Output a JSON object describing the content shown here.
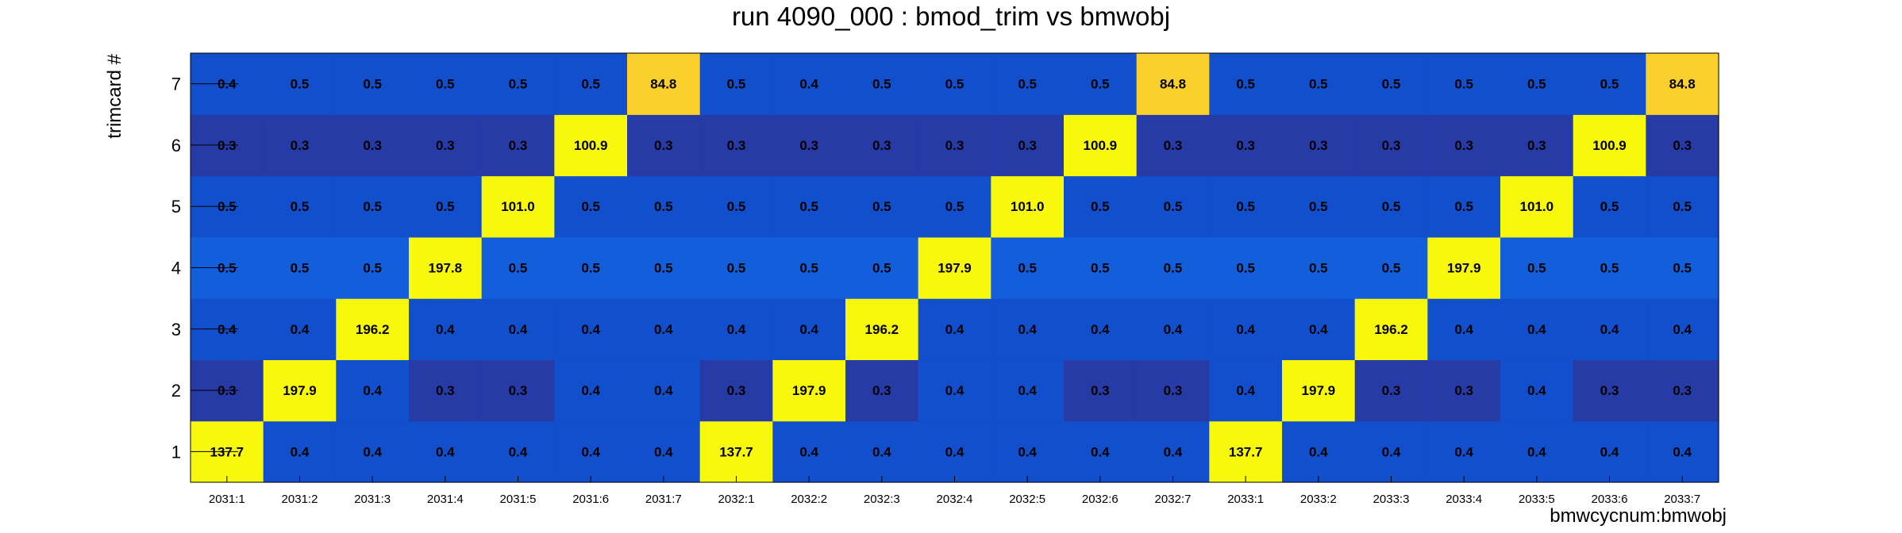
{
  "chart_data": {
    "type": "heatmap",
    "title": "run 4090_000 : bmod_trim vs bmwobj",
    "xlabel": "bmwcycnum:bmwobj",
    "ylabel": "trimcard #",
    "x_categories": [
      "2031:1",
      "2031:2",
      "2031:3",
      "2031:4",
      "2031:5",
      "2031:6",
      "2031:7",
      "2032:1",
      "2032:2",
      "2032:3",
      "2032:4",
      "2032:5",
      "2032:6",
      "2032:7",
      "2033:1",
      "2033:2",
      "2033:3",
      "2033:4",
      "2033:5",
      "2033:6",
      "2033:7"
    ],
    "y_categories": [
      "1",
      "2",
      "3",
      "4",
      "5",
      "6",
      "7"
    ],
    "values": [
      [
        137.7,
        0.4,
        0.4,
        0.4,
        0.4,
        0.4,
        0.4,
        137.7,
        0.4,
        0.4,
        0.4,
        0.4,
        0.4,
        0.4,
        137.7,
        0.4,
        0.4,
        0.4,
        0.4,
        0.4,
        0.4
      ],
      [
        0.3,
        197.9,
        0.4,
        0.3,
        0.3,
        0.4,
        0.4,
        0.3,
        197.9,
        0.3,
        0.4,
        0.4,
        0.3,
        0.3,
        0.4,
        197.9,
        0.3,
        0.3,
        0.4,
        0.3,
        0.3
      ],
      [
        0.4,
        0.4,
        196.2,
        0.4,
        0.4,
        0.4,
        0.4,
        0.4,
        0.4,
        196.2,
        0.4,
        0.4,
        0.4,
        0.4,
        0.4,
        0.4,
        196.2,
        0.4,
        0.4,
        0.4,
        0.4
      ],
      [
        0.5,
        0.5,
        0.5,
        197.8,
        0.5,
        0.5,
        0.5,
        0.5,
        0.5,
        0.5,
        197.9,
        0.5,
        0.5,
        0.5,
        0.5,
        0.5,
        0.5,
        197.9,
        0.5,
        0.5,
        0.5
      ],
      [
        0.5,
        0.5,
        0.5,
        0.5,
        101.0,
        0.5,
        0.5,
        0.5,
        0.5,
        0.5,
        0.5,
        101.0,
        0.5,
        0.5,
        0.5,
        0.5,
        0.5,
        0.5,
        101.0,
        0.5,
        0.5
      ],
      [
        0.3,
        0.3,
        0.3,
        0.3,
        0.3,
        100.9,
        0.3,
        0.3,
        0.3,
        0.3,
        0.3,
        0.3,
        100.9,
        0.3,
        0.3,
        0.3,
        0.3,
        0.3,
        0.3,
        100.9,
        0.3
      ],
      [
        0.4,
        0.5,
        0.5,
        0.5,
        0.5,
        0.5,
        84.8,
        0.5,
        0.4,
        0.5,
        0.5,
        0.5,
        0.5,
        84.8,
        0.5,
        0.5,
        0.5,
        0.5,
        0.5,
        0.5,
        84.8
      ]
    ],
    "grid": false,
    "legend": "none",
    "colors": {
      "highest": "#f8f80c",
      "high": "#fbd02c",
      "low_light": "#135fdb",
      "low": "#124fcc",
      "lowest": "#273ba7"
    }
  }
}
